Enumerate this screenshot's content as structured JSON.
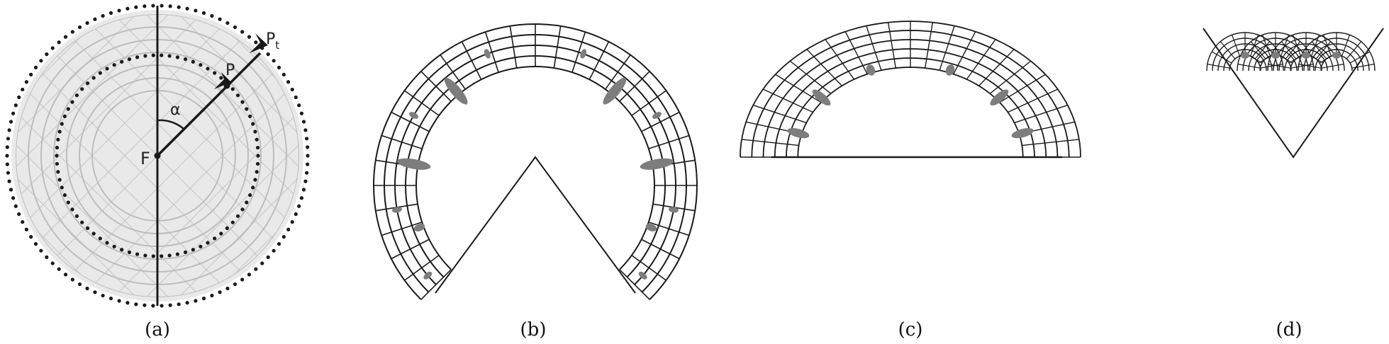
{
  "panels": [
    {
      "caption": "(a)",
      "labels": {
        "focus": "F",
        "point": "P",
        "target": "P",
        "target_sub": "t",
        "angle": "α"
      }
    },
    {
      "caption": "(b)"
    },
    {
      "caption": "(c)"
    },
    {
      "caption": "(d)"
    }
  ],
  "colors": {
    "ink": "#1a1a1a",
    "grid_light": "#bdbdbd",
    "background_disc": "#e9e9e9",
    "ellipse": "#7d7d7d"
  }
}
